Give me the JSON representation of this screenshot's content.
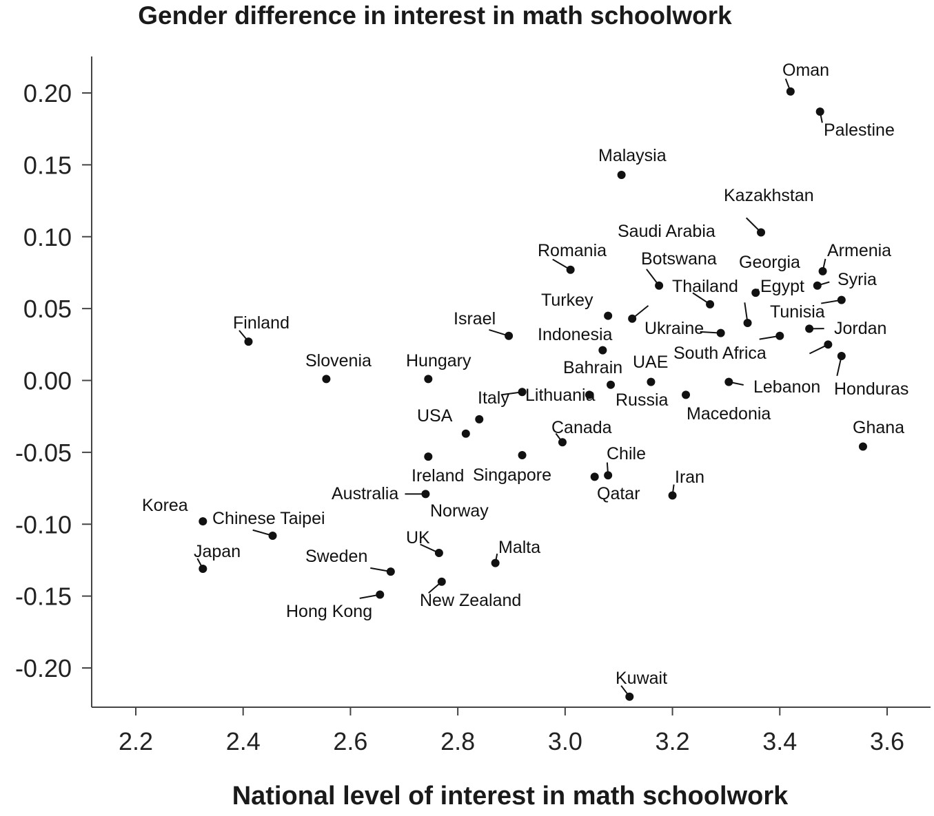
{
  "chart_data": {
    "type": "scatter",
    "title": "Gender difference in interest in math schoolwork",
    "xlabel": "National level of interest in math schoolwork",
    "ylabel": "",
    "xlim": [
      2.12,
      3.68
    ],
    "ylim": [
      -0.227,
      0.225
    ],
    "xticks": [
      "2.2",
      "2.4",
      "2.6",
      "2.8",
      "3.0",
      "3.2",
      "3.4",
      "3.6"
    ],
    "yticks": [
      "0.20",
      "0.15",
      "0.10",
      "0.05",
      "0.00",
      "-0.05",
      "-0.10",
      "-0.15",
      "-0.20"
    ],
    "grid": false,
    "points": [
      {
        "label": "Oman",
        "x": 3.42,
        "y": 0.201
      },
      {
        "label": "Palestine",
        "x": 3.475,
        "y": 0.187
      },
      {
        "label": "Malaysia",
        "x": 3.105,
        "y": 0.143
      },
      {
        "label": "Kazakhstan",
        "x": 3.365,
        "y": 0.103
      },
      {
        "label": "Saudi Arabia",
        "x": 3.175,
        "y": 0.066
      },
      {
        "label": "Romania",
        "x": 3.01,
        "y": 0.077
      },
      {
        "label": "Botswana",
        "x": 3.27,
        "y": 0.053
      },
      {
        "label": "Georgia",
        "x": 3.34,
        "y": 0.04
      },
      {
        "label": "Armenia",
        "x": 3.48,
        "y": 0.076
      },
      {
        "label": "Egypt",
        "x": 3.355,
        "y": 0.061
      },
      {
        "label": "Syria",
        "x": 3.47,
        "y": 0.066
      },
      {
        "label": "Thailand",
        "x": 3.125,
        "y": 0.043
      },
      {
        "label": "Turkey",
        "x": 3.08,
        "y": 0.045
      },
      {
        "label": "Tunisia",
        "x": 3.515,
        "y": 0.056
      },
      {
        "label": "Jordan",
        "x": 3.455,
        "y": 0.036
      },
      {
        "label": "Ukraine",
        "x": 3.29,
        "y": 0.033
      },
      {
        "label": "South Africa",
        "x": 3.4,
        "y": 0.031
      },
      {
        "label": "Indonesia",
        "x": 3.07,
        "y": 0.021
      },
      {
        "label": "Israel",
        "x": 2.895,
        "y": 0.031
      },
      {
        "label": "Finland",
        "x": 2.41,
        "y": 0.027
      },
      {
        "label": "Slovenia",
        "x": 2.555,
        "y": 0.001
      },
      {
        "label": "Hungary",
        "x": 2.745,
        "y": 0.001
      },
      {
        "label": "Bahrain",
        "x": 3.085,
        "y": -0.003
      },
      {
        "label": "UAE",
        "x": 3.16,
        "y": -0.001
      },
      {
        "label": "Lebanon",
        "x": 3.305,
        "y": -0.001
      },
      {
        "label": "Honduras",
        "x": 3.515,
        "y": 0.017
      },
      {
        "label": "Italy",
        "x": 2.92,
        "y": -0.008
      },
      {
        "label": "Lithuania",
        "x": 3.045,
        "y": -0.01
      },
      {
        "label": "Russia",
        "x": 3.225,
        "y": -0.01
      },
      {
        "label": "Macedonia",
        "x": 3.49,
        "y": 0.025
      },
      {
        "label": "USA",
        "x": 2.84,
        "y": -0.027
      },
      {
        "label": "Canada",
        "x": 2.995,
        "y": -0.043
      },
      {
        "label": "Ghana",
        "x": 3.555,
        "y": -0.046
      },
      {
        "label": "Chile",
        "x": 3.08,
        "y": -0.066
      },
      {
        "label": "Ireland",
        "x": 2.745,
        "y": -0.053
      },
      {
        "label": "Singapore",
        "x": 2.92,
        "y": -0.052
      },
      {
        "label": "Qatar",
        "x": 3.055,
        "y": -0.067
      },
      {
        "label": "Iran",
        "x": 3.2,
        "y": -0.08
      },
      {
        "label": "Australia",
        "x": 2.74,
        "y": -0.079
      },
      {
        "label": "Norway",
        "x": 2.815,
        "y": -0.037
      },
      {
        "label": "Korea",
        "x": 2.325,
        "y": -0.098
      },
      {
        "label": "Chinese Taipei",
        "x": 2.455,
        "y": -0.108
      },
      {
        "label": "UK",
        "x": 2.765,
        "y": -0.12
      },
      {
        "label": "Malta",
        "x": 2.87,
        "y": -0.127
      },
      {
        "label": "Japan",
        "x": 2.325,
        "y": -0.131
      },
      {
        "label": "Sweden",
        "x": 2.675,
        "y": -0.133
      },
      {
        "label": "New Zealand",
        "x": 2.77,
        "y": -0.14
      },
      {
        "label": "Hong Kong",
        "x": 2.655,
        "y": -0.149
      },
      {
        "label": "Kuwait",
        "x": 3.12,
        "y": -0.22
      }
    ]
  }
}
